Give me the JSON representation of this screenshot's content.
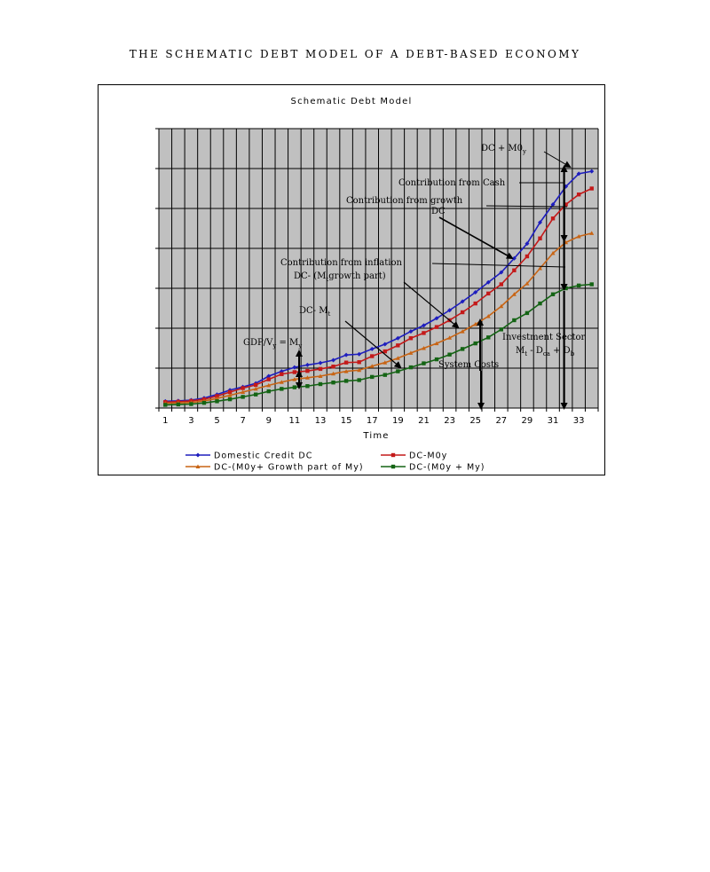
{
  "page": {
    "title": "THE SCHEMATIC DEBT MODEL OF A DEBT-BASED ECONOMY"
  },
  "chart_data": {
    "type": "line",
    "title": "Schematic Debt Model",
    "xlabel": "Time",
    "ylabel": "",
    "x": [
      1,
      2,
      3,
      4,
      5,
      6,
      7,
      8,
      9,
      10,
      11,
      12,
      13,
      14,
      15,
      16,
      17,
      18,
      19,
      20,
      21,
      22,
      23,
      24,
      25,
      26,
      27,
      28,
      29,
      30,
      31,
      32,
      33,
      34
    ],
    "xticks": [
      1,
      3,
      5,
      7,
      9,
      11,
      13,
      15,
      17,
      19,
      21,
      23,
      25,
      27,
      29,
      31,
      33
    ],
    "xlim": [
      0.5,
      34.5
    ],
    "ylim": [
      0,
      7
    ],
    "grid": true,
    "legend_position": "bottom",
    "series": [
      {
        "name": "Domestic Credit DC",
        "color": "#1e1ebe",
        "marker": "diamond",
        "values": [
          0.17,
          0.18,
          0.2,
          0.25,
          0.34,
          0.45,
          0.53,
          0.62,
          0.8,
          0.92,
          1.02,
          1.08,
          1.13,
          1.2,
          1.33,
          1.35,
          1.48,
          1.6,
          1.75,
          1.92,
          2.07,
          2.25,
          2.45,
          2.67,
          2.9,
          3.15,
          3.4,
          3.75,
          4.12,
          4.65,
          5.1,
          5.55,
          5.87,
          5.93
        ]
      },
      {
        "name": "DC-M0y",
        "color": "#c41a1a",
        "marker": "square",
        "values": [
          0.15,
          0.16,
          0.18,
          0.22,
          0.3,
          0.4,
          0.5,
          0.58,
          0.72,
          0.85,
          0.9,
          0.93,
          0.98,
          1.04,
          1.14,
          1.15,
          1.3,
          1.42,
          1.57,
          1.75,
          1.88,
          2.03,
          2.2,
          2.4,
          2.62,
          2.87,
          3.1,
          3.45,
          3.8,
          4.25,
          4.75,
          5.1,
          5.35,
          5.5
        ]
      },
      {
        "name": "DC-(M0y+ Growth part of My)",
        "color": "#c86414",
        "marker": "triangle",
        "values": [
          0.12,
          0.13,
          0.14,
          0.18,
          0.24,
          0.32,
          0.4,
          0.48,
          0.57,
          0.65,
          0.72,
          0.76,
          0.8,
          0.86,
          0.92,
          0.95,
          1.05,
          1.14,
          1.25,
          1.38,
          1.5,
          1.62,
          1.76,
          1.92,
          2.1,
          2.3,
          2.55,
          2.85,
          3.12,
          3.5,
          3.88,
          4.15,
          4.3,
          4.38
        ]
      },
      {
        "name": "DC-(M0y + My)",
        "color": "#146414",
        "marker": "square",
        "values": [
          0.08,
          0.09,
          0.1,
          0.13,
          0.17,
          0.22,
          0.28,
          0.34,
          0.42,
          0.48,
          0.52,
          0.55,
          0.6,
          0.64,
          0.68,
          0.7,
          0.78,
          0.83,
          0.92,
          1.02,
          1.12,
          1.22,
          1.34,
          1.48,
          1.62,
          1.77,
          1.97,
          2.2,
          2.38,
          2.62,
          2.85,
          3.0,
          3.07,
          3.1
        ]
      }
    ],
    "annotations": {
      "dc_m0y": "DC + M0",
      "dc_m0y_sub": "y",
      "cash": "Contribution from Cash",
      "growth_1": "Contribution from growth",
      "growth_2": "DC",
      "inflation_1": "Contribution from inflation",
      "inflation_2": "DC- (M",
      "inflation_2_sub": "t",
      "inflation_2_tail": "growth part)",
      "dc_mt": "DC- M",
      "dc_mt_sub": "t",
      "gdp_1": "GDP/V",
      "gdp_1_sub": "y",
      "gdp_2": " = M",
      "gdp_2_sub": "y",
      "investment_1": "Investment Sector",
      "investment_2": "M",
      "investment_2_sub1": "t",
      "investment_2_mid": " - D",
      "investment_2_sub2": "ca",
      "investment_2_tail": " + D",
      "investment_2_sub3": "b",
      "system_costs": "System Costs"
    }
  }
}
